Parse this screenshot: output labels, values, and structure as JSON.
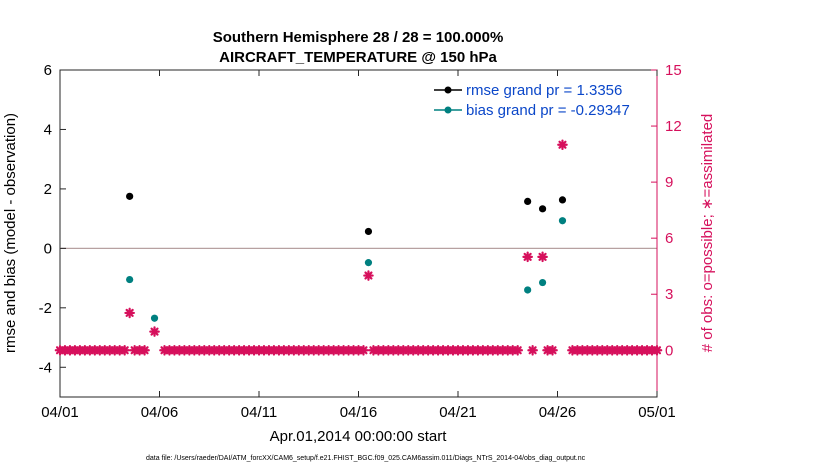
{
  "chart_data": {
    "type": "scatter",
    "title": [
      "Southern Hemisphere 28 / 28 = 100.000%",
      "AIRCRAFT_TEMPERATURE @ 150 hPa"
    ],
    "xlabel": "Apr.01,2014 00:00:00 start",
    "ylabel_left": "rmse and bias (model - observation)",
    "ylabel_right": "# of obs: o=possible; ∗=assimilated",
    "footnote": "data file: /Users/raeder/DAI/ATM_forcXX/CAM6_setup/f.e21.FHIST_BGC.f09_025.CAM6assim.011/Diags_NTrS_2014-04/obs_diag_output.nc",
    "x_range": [
      0,
      30
    ],
    "x_ticks": [
      0,
      5,
      10,
      15,
      20,
      25,
      30
    ],
    "x_tick_labels": [
      "04/01",
      "04/06",
      "04/11",
      "04/16",
      "04/21",
      "04/26",
      "05/01"
    ],
    "y_left_range": [
      -5,
      6
    ],
    "y_left_ticks": [
      -4,
      -2,
      0,
      2,
      4,
      6
    ],
    "y_left_tick_labels": [
      "-4",
      "-2",
      "0",
      "2",
      "4",
      "6"
    ],
    "y_right_range": [
      -2.5,
      15
    ],
    "y_right_ticks": [
      0,
      3,
      6,
      9,
      12,
      15
    ],
    "y_right_tick_labels": [
      "0",
      "3",
      "6",
      "9",
      "12",
      "15"
    ],
    "zero_line": 0,
    "legend": {
      "placement": "top-right",
      "entries": [
        {
          "label": "rmse grand pr = 1.3356",
          "color": "#000000"
        },
        {
          "label": "bias grand pr = -0.29347",
          "color": "#008080"
        }
      ]
    },
    "series": [
      {
        "name": "rmse grand pr = 1.3356",
        "axis": "left",
        "color": "#000000",
        "points": [
          [
            3.5,
            1.75
          ],
          [
            15.5,
            0.57
          ],
          [
            23.5,
            1.58
          ],
          [
            24.25,
            1.33
          ],
          [
            25.25,
            1.63
          ]
        ]
      },
      {
        "name": "bias grand pr = -0.29347",
        "axis": "left",
        "color": "#008080",
        "points": [
          [
            3.5,
            -1.05
          ],
          [
            4.75,
            -2.35
          ],
          [
            15.5,
            -0.48
          ],
          [
            23.5,
            -1.4
          ],
          [
            24.25,
            -1.15
          ],
          [
            25.25,
            0.93
          ]
        ]
      },
      {
        "name": "",
        "axis": "right",
        "color": "#d6105c",
        "points": [
          [
            0,
            0
          ],
          [
            0.25,
            0
          ],
          [
            0.5,
            0
          ],
          [
            0.75,
            0
          ],
          [
            1,
            0
          ],
          [
            1.25,
            0
          ],
          [
            1.5,
            0
          ],
          [
            1.75,
            0
          ],
          [
            2,
            0
          ],
          [
            2.25,
            0
          ],
          [
            2.5,
            0
          ],
          [
            2.75,
            0
          ],
          [
            3,
            0
          ],
          [
            3.25,
            0
          ],
          [
            3.5,
            2
          ],
          [
            3.75,
            0
          ],
          [
            4,
            0
          ],
          [
            4.25,
            0
          ],
          [
            4.75,
            1
          ],
          [
            5.25,
            0
          ],
          [
            5.5,
            0
          ],
          [
            5.75,
            0
          ],
          [
            6,
            0
          ],
          [
            6.25,
            0
          ],
          [
            6.5,
            0
          ],
          [
            6.75,
            0
          ],
          [
            7,
            0
          ],
          [
            7.25,
            0
          ],
          [
            7.5,
            0
          ],
          [
            7.75,
            0
          ],
          [
            8,
            0
          ],
          [
            8.25,
            0
          ],
          [
            8.5,
            0
          ],
          [
            8.75,
            0
          ],
          [
            9,
            0
          ],
          [
            9.25,
            0
          ],
          [
            9.5,
            0
          ],
          [
            9.75,
            0
          ],
          [
            10,
            0
          ],
          [
            10.25,
            0
          ],
          [
            10.5,
            0
          ],
          [
            10.75,
            0
          ],
          [
            11,
            0
          ],
          [
            11.25,
            0
          ],
          [
            11.5,
            0
          ],
          [
            11.75,
            0
          ],
          [
            12,
            0
          ],
          [
            12.25,
            0
          ],
          [
            12.5,
            0
          ],
          [
            12.75,
            0
          ],
          [
            13,
            0
          ],
          [
            13.25,
            0
          ],
          [
            13.5,
            0
          ],
          [
            13.75,
            0
          ],
          [
            14,
            0
          ],
          [
            14.25,
            0
          ],
          [
            14.5,
            0
          ],
          [
            14.75,
            0
          ],
          [
            15,
            0
          ],
          [
            15.25,
            0
          ],
          [
            15.5,
            4
          ],
          [
            15.75,
            0
          ],
          [
            16,
            0
          ],
          [
            16.25,
            0
          ],
          [
            16.5,
            0
          ],
          [
            16.75,
            0
          ],
          [
            17,
            0
          ],
          [
            17.25,
            0
          ],
          [
            17.5,
            0
          ],
          [
            17.75,
            0
          ],
          [
            18,
            0
          ],
          [
            18.25,
            0
          ],
          [
            18.5,
            0
          ],
          [
            18.75,
            0
          ],
          [
            19,
            0
          ],
          [
            19.25,
            0
          ],
          [
            19.5,
            0
          ],
          [
            19.75,
            0
          ],
          [
            20,
            0
          ],
          [
            20.25,
            0
          ],
          [
            20.5,
            0
          ],
          [
            20.75,
            0
          ],
          [
            21,
            0
          ],
          [
            21.25,
            0
          ],
          [
            21.5,
            0
          ],
          [
            21.75,
            0
          ],
          [
            22,
            0
          ],
          [
            22.25,
            0
          ],
          [
            22.5,
            0
          ],
          [
            22.75,
            0
          ],
          [
            23,
            0
          ],
          [
            23.5,
            5
          ],
          [
            23.75,
            0
          ],
          [
            24.25,
            5
          ],
          [
            24.5,
            0
          ],
          [
            24.75,
            0
          ],
          [
            25.25,
            11
          ],
          [
            25.75,
            0
          ],
          [
            26,
            0
          ],
          [
            26.25,
            0
          ],
          [
            26.5,
            0
          ],
          [
            26.75,
            0
          ],
          [
            27,
            0
          ],
          [
            27.25,
            0
          ],
          [
            27.5,
            0
          ],
          [
            27.75,
            0
          ],
          [
            28,
            0
          ],
          [
            28.25,
            0
          ],
          [
            28.5,
            0
          ],
          [
            28.75,
            0
          ],
          [
            29,
            0
          ],
          [
            29.25,
            0
          ],
          [
            29.5,
            0
          ],
          [
            29.75,
            0
          ],
          [
            30,
            0
          ]
        ]
      }
    ],
    "colors": {
      "left_axis": "#000000",
      "right_axis": "#d6105c",
      "legend_text": "#0b47c9",
      "zero_line": "#b7a1a1"
    }
  }
}
